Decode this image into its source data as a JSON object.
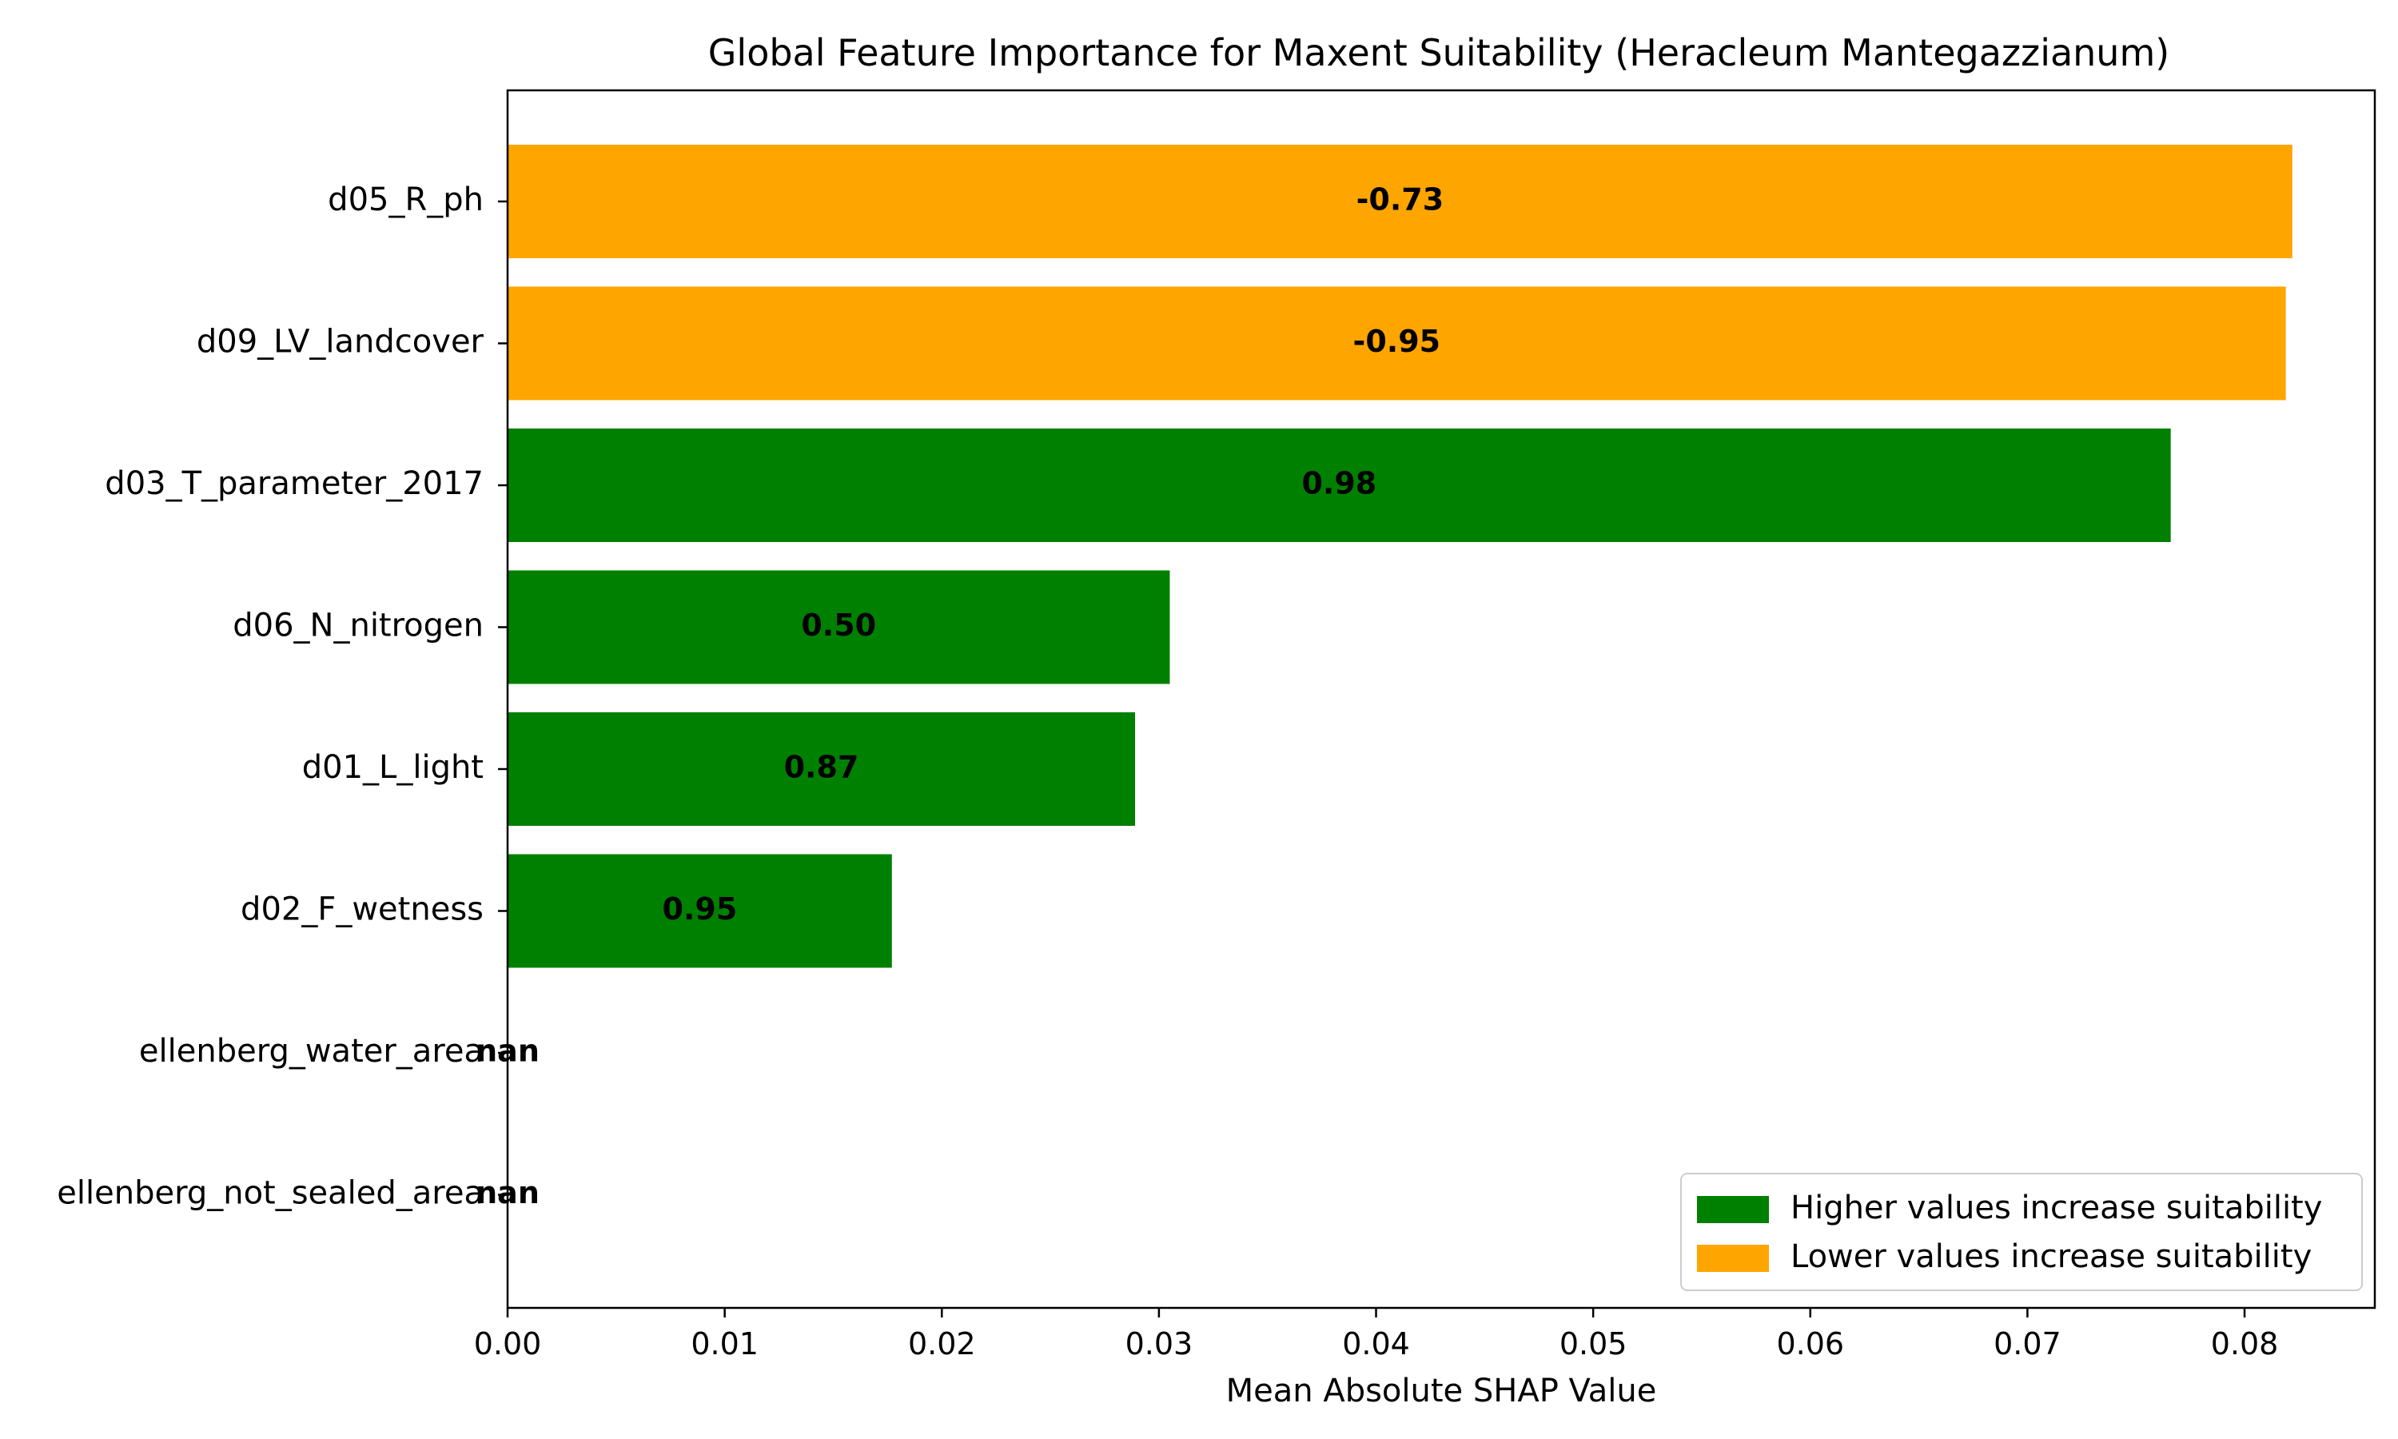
{
  "chart_data": {
    "type": "bar",
    "orientation": "horizontal",
    "title": "Global Feature Importance for Maxent Suitability (Heracleum Mantegazzianum)",
    "xlabel": "Mean Absolute SHAP Value",
    "ylabel": "",
    "xlim": [
      0,
      0.086
    ],
    "xticks": [
      "0.00",
      "0.01",
      "0.02",
      "0.03",
      "0.04",
      "0.05",
      "0.06",
      "0.07",
      "0.08"
    ],
    "grid": false,
    "legend_position": "bottom-right",
    "categories": [
      "d05_R_ph",
      "d09_LV_landcover",
      "d03_T_parameter_2017",
      "d06_N_nitrogen",
      "d01_L_light",
      "d02_F_wetness",
      "ellenberg_water_area",
      "ellenberg_not_sealed_area"
    ],
    "values": [
      0.0822,
      0.0819,
      0.0766,
      0.0305,
      0.0289,
      0.0177,
      0,
      0
    ],
    "bar_labels": [
      "-0.73",
      "-0.95",
      "0.98",
      "0.50",
      "0.87",
      "0.95",
      "nan",
      "nan"
    ],
    "bar_groups": [
      "lower",
      "lower",
      "higher",
      "higher",
      "higher",
      "higher",
      "none",
      "none"
    ],
    "legend": [
      {
        "key": "higher",
        "label": "Higher values increase suitability",
        "color": "#008000"
      },
      {
        "key": "lower",
        "label": "Lower values increase suitability",
        "color": "#FFA500"
      }
    ]
  }
}
